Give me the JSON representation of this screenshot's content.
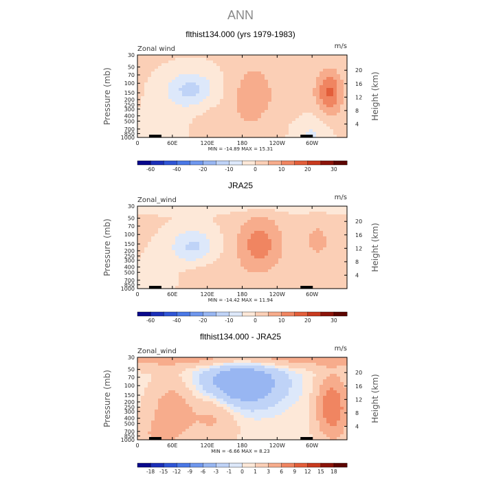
{
  "figure_title": "ANN",
  "chart_data": [
    {
      "type": "heatmap",
      "title": "flthist134.000 (yrs 1979-1983)",
      "variable_label": "Zonal wind",
      "units": "m/s",
      "ylabel": "Pressure (mb)",
      "ylabel_right": "Height (km)",
      "x_ticks": [
        "0",
        "60E",
        "120E",
        "180",
        "120W",
        "60W"
      ],
      "x_tick_values": [
        0,
        60,
        120,
        180,
        240,
        300
      ],
      "xlim": [
        0,
        360
      ],
      "y_ticks": [
        "30",
        "50",
        "70",
        "100",
        "150",
        "200",
        "250",
        "300",
        "400",
        "500",
        "700",
        "850",
        "1000"
      ],
      "y_tick_values": [
        30,
        50,
        70,
        100,
        150,
        200,
        250,
        300,
        400,
        500,
        700,
        850,
        1000
      ],
      "ylim": [
        1000,
        30
      ],
      "height_ticks": [
        "20",
        "16",
        "12",
        "8",
        "4"
      ],
      "height_tick_values": [
        20,
        16,
        12,
        8,
        4
      ],
      "min_max_text": "MIN = -14.89   MAX =  15.31",
      "min": -14.89,
      "max": 15.31,
      "colorbar_levels": [
        -60,
        -50,
        -40,
        -30,
        -20,
        -15,
        -10,
        -5,
        0,
        5,
        10,
        15,
        20,
        25,
        30
      ],
      "colorbar_labels": [
        "-60",
        "-40",
        "-20",
        "-10",
        "0",
        "10",
        "20",
        "30"
      ],
      "colorbar_label_values": [
        -60,
        -40,
        -20,
        -10,
        0,
        10,
        20,
        30
      ],
      "colorbar_colors": [
        "#08088c",
        "#1b2fb8",
        "#2f55d6",
        "#4a78e6",
        "#6f97ee",
        "#98b6f2",
        "#bfd3f7",
        "#dde8fa",
        "#fde8d8",
        "#fbcfb6",
        "#f7ac8c",
        "#f08561",
        "#e35e3a",
        "#c83a1e",
        "#8c140a",
        "#5c0500"
      ],
      "field_features": [
        {
          "lon": 90,
          "p": 130,
          "value": -12,
          "lon_width": 42,
          "p_width": 0.22
        },
        {
          "lon": 50,
          "p": 700,
          "value": -4,
          "lon_width": 40,
          "p_width": 0.3
        },
        {
          "lon": 200,
          "p": 150,
          "value": 8,
          "lon_width": 35,
          "p_width": 0.35
        },
        {
          "lon": 272,
          "p": 150,
          "value": 4,
          "lon_width": 28,
          "p_width": 0.25
        },
        {
          "lon": 330,
          "p": 150,
          "value": 15.31,
          "lon_width": 22,
          "p_width": 0.28
        },
        {
          "lon": 150,
          "p": 700,
          "value": 3,
          "lon_width": 60,
          "p_width": 0.3
        },
        {
          "lon": 300,
          "p": 850,
          "value": -6,
          "lon_width": 30,
          "p_width": 0.25
        }
      ],
      "field_background": 0.5
    },
    {
      "type": "heatmap",
      "title": "JRA25",
      "variable_label": "Zonal_wind",
      "units": "m/s",
      "ylabel": "Pressure (mb)",
      "ylabel_right": "Height (km)",
      "x_ticks": [
        "0",
        "60E",
        "120E",
        "180",
        "120W",
        "60W"
      ],
      "x_tick_values": [
        0,
        60,
        120,
        180,
        240,
        300
      ],
      "xlim": [
        0,
        360
      ],
      "y_ticks": [
        "30",
        "50",
        "70",
        "100",
        "150",
        "200",
        "250",
        "300",
        "400",
        "500",
        "700",
        "850",
        "1000"
      ],
      "y_tick_values": [
        30,
        50,
        70,
        100,
        150,
        200,
        250,
        300,
        400,
        500,
        700,
        850,
        1000
      ],
      "ylim": [
        1000,
        30
      ],
      "height_ticks": [
        "20",
        "16",
        "12",
        "8",
        "4"
      ],
      "height_tick_values": [
        20,
        16,
        12,
        8,
        4
      ],
      "min_max_text": "MIN = -14.42   MAX =  11.94",
      "min": -14.42,
      "max": 11.94,
      "colorbar_levels": [
        -60,
        -50,
        -40,
        -30,
        -20,
        -15,
        -10,
        -5,
        0,
        5,
        10,
        15,
        20,
        25,
        30
      ],
      "colorbar_labels": [
        "-60",
        "-40",
        "-20",
        "-10",
        "0",
        "10",
        "20",
        "30"
      ],
      "colorbar_label_values": [
        -60,
        -40,
        -20,
        -10,
        0,
        10,
        20,
        30
      ],
      "colorbar_colors": [
        "#08088c",
        "#1b2fb8",
        "#2f55d6",
        "#4a78e6",
        "#6f97ee",
        "#98b6f2",
        "#bfd3f7",
        "#dde8fa",
        "#fde8d8",
        "#fbcfb6",
        "#f7ac8c",
        "#f08561",
        "#e35e3a",
        "#c83a1e",
        "#8c140a",
        "#5c0500"
      ],
      "field_features": [
        {
          "lon": 95,
          "p": 170,
          "value": -12,
          "lon_width": 38,
          "p_width": 0.22
        },
        {
          "lon": 40,
          "p": 700,
          "value": -4,
          "lon_width": 35,
          "p_width": 0.3
        },
        {
          "lon": 210,
          "p": 150,
          "value": 11.94,
          "lon_width": 40,
          "p_width": 0.35
        },
        {
          "lon": 310,
          "p": 130,
          "value": 6,
          "lon_width": 25,
          "p_width": 0.25
        },
        {
          "lon": 110,
          "p": 600,
          "value": 3,
          "lon_width": 60,
          "p_width": 0.3
        },
        {
          "lon": 335,
          "p": 900,
          "value": 3,
          "lon_width": 25,
          "p_width": 0.2
        },
        {
          "lon": 180,
          "p": 30,
          "value": -4,
          "lon_width": 500,
          "p_width": 0.08
        }
      ],
      "field_background": 0.5
    },
    {
      "type": "heatmap",
      "title": "flthist134.000 - JRA25",
      "variable_label": "Zonal_wind",
      "units": "m/s",
      "ylabel": "Pressure (mb)",
      "ylabel_right": "Height (km)",
      "x_ticks": [
        "0",
        "60E",
        "120E",
        "180",
        "120W",
        "60W"
      ],
      "x_tick_values": [
        0,
        60,
        120,
        180,
        240,
        300
      ],
      "xlim": [
        0,
        360
      ],
      "y_ticks": [
        "30",
        "50",
        "70",
        "100",
        "150",
        "200",
        "250",
        "300",
        "400",
        "500",
        "700",
        "850",
        "1000"
      ],
      "y_tick_values": [
        30,
        50,
        70,
        100,
        150,
        200,
        250,
        300,
        400,
        500,
        700,
        850,
        1000
      ],
      "ylim": [
        1000,
        30
      ],
      "height_ticks": [
        "20",
        "16",
        "12",
        "8",
        "4"
      ],
      "height_tick_values": [
        20,
        16,
        12,
        8,
        4
      ],
      "min_max_text": "MIN =  -6.66   MAX =   8.23",
      "min": -6.66,
      "max": 8.23,
      "colorbar_levels": [
        -18,
        -15,
        -12,
        -9,
        -6,
        -3,
        -1,
        0,
        1,
        3,
        6,
        9,
        12,
        15,
        18
      ],
      "colorbar_labels": [
        "-18",
        "-15",
        "-12",
        "-9",
        "-6",
        "-3",
        "-1",
        "0",
        "1",
        "3",
        "6",
        "9",
        "12",
        "15",
        "18"
      ],
      "colorbar_label_values": [
        -18,
        -15,
        -12,
        -9,
        -6,
        -3,
        -1,
        0,
        1,
        3,
        6,
        9,
        12,
        15,
        18
      ],
      "colorbar_colors": [
        "#08088c",
        "#1b2fb8",
        "#2f55d6",
        "#4a78e6",
        "#6f97ee",
        "#98b6f2",
        "#bfd3f7",
        "#dde8fa",
        "#fde8d8",
        "#fbcfb6",
        "#f7ac8c",
        "#f08561",
        "#e35e3a",
        "#c83a1e",
        "#8c140a",
        "#5c0500"
      ],
      "field_features": [
        {
          "lon": 180,
          "p": 90,
          "value": -6.66,
          "lon_width": 70,
          "p_width": 0.3
        },
        {
          "lon": 60,
          "p": 280,
          "value": 4,
          "lon_width": 35,
          "p_width": 0.35
        },
        {
          "lon": 130,
          "p": 350,
          "value": 3,
          "lon_width": 40,
          "p_width": 0.3
        },
        {
          "lon": 335,
          "p": 250,
          "value": 8.23,
          "lon_width": 25,
          "p_width": 0.35
        },
        {
          "lon": 180,
          "p": 30,
          "value": 4,
          "lon_width": 500,
          "p_width": 0.12
        },
        {
          "lon": 30,
          "p": 900,
          "value": 2,
          "lon_width": 40,
          "p_width": 0.25
        }
      ],
      "field_background": 0.6
    }
  ]
}
